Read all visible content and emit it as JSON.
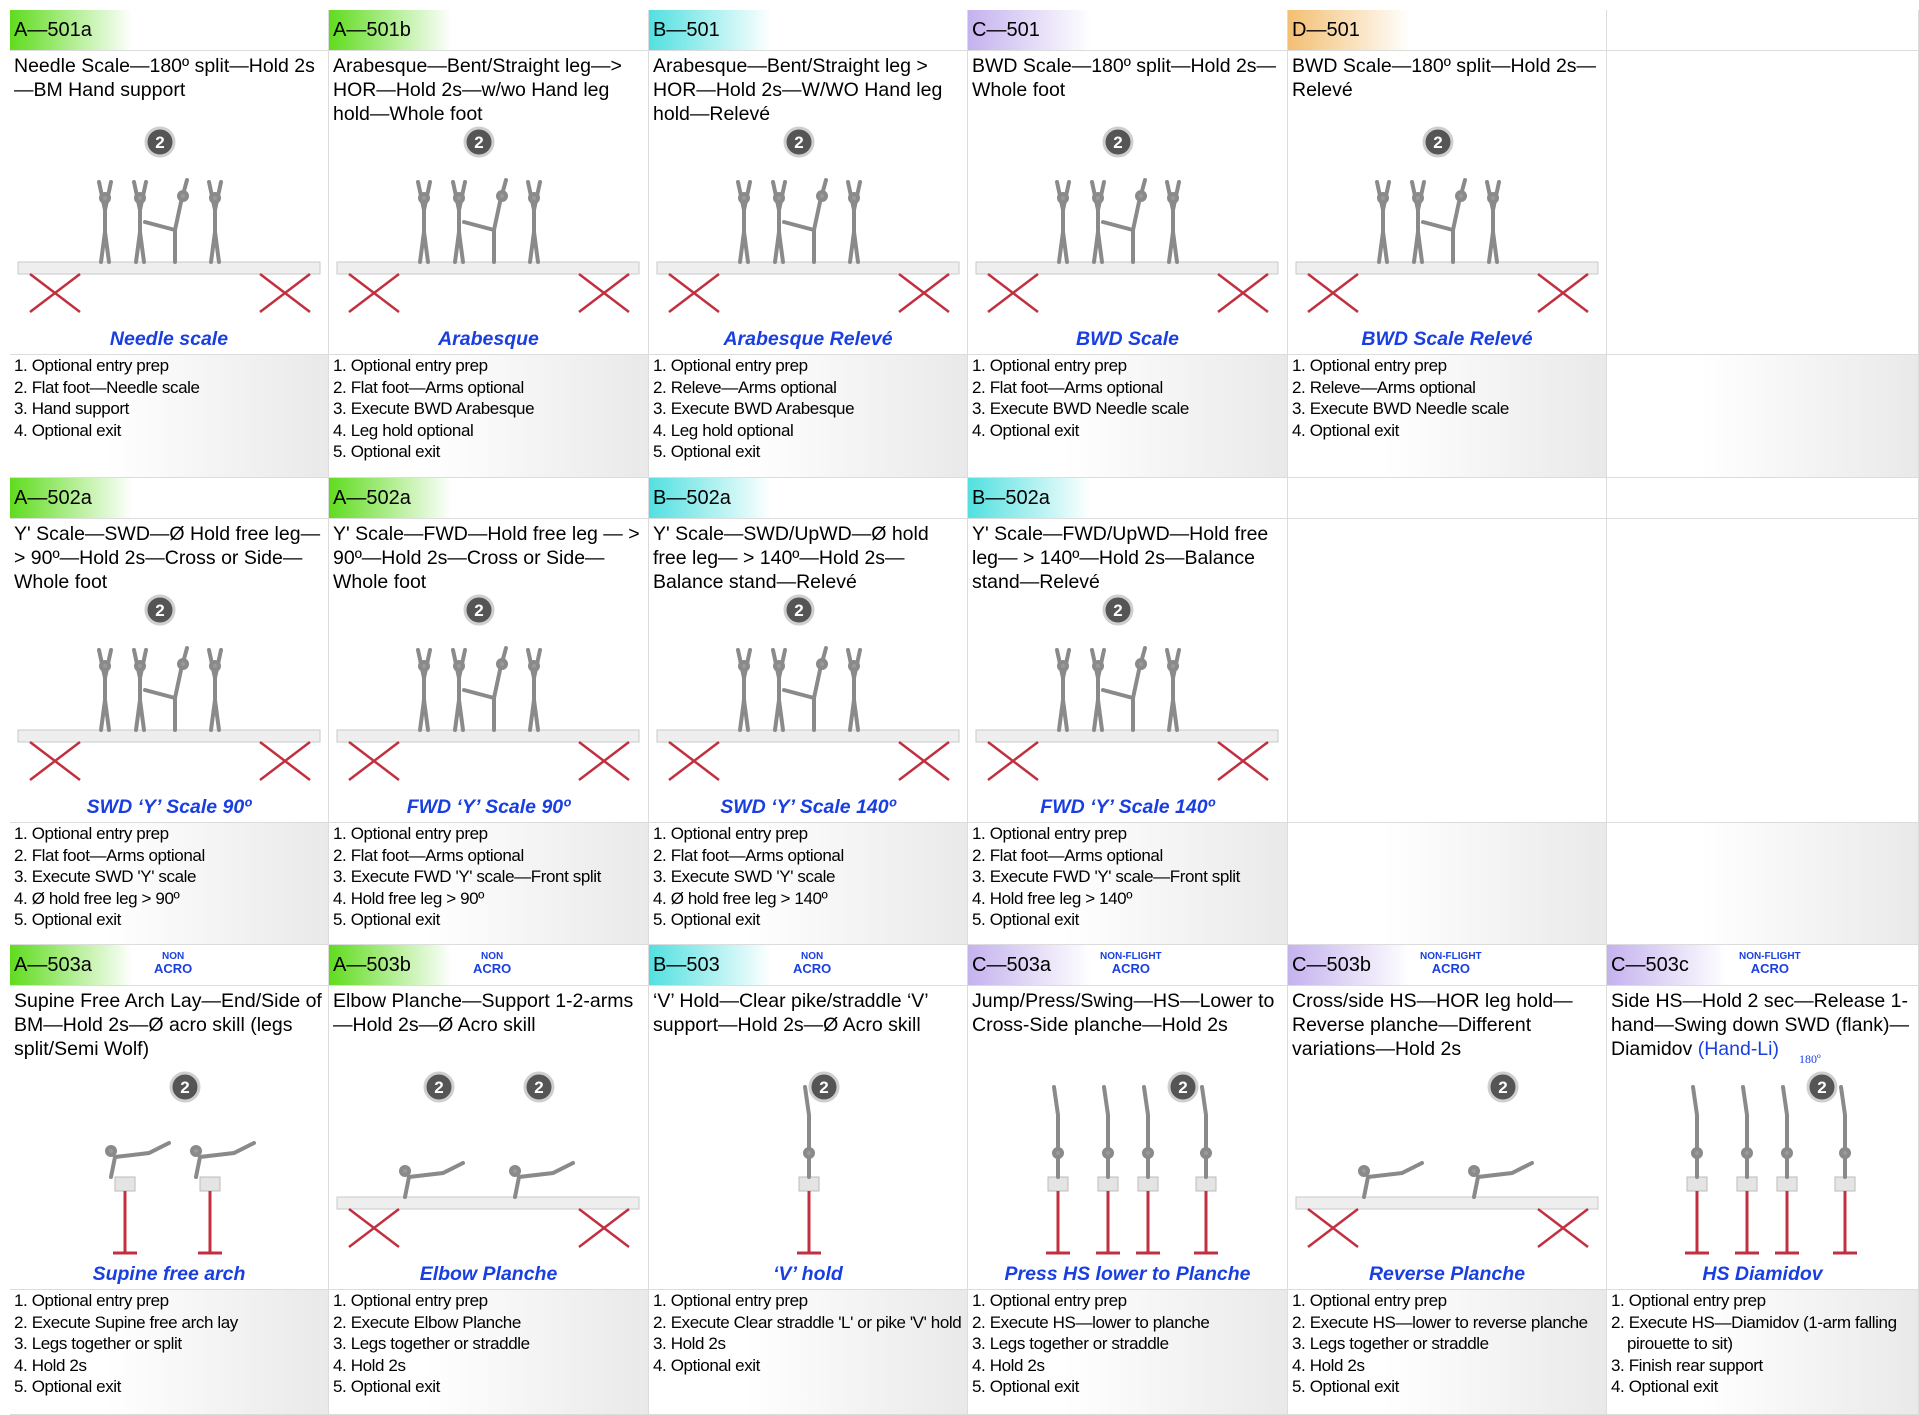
{
  "rows": [
    [
      {
        "code": "A—501a",
        "color": "#5fdc1e",
        "description": "Needle Scale—180º split—Hold 2s—BM Hand support",
        "badges": [
          "2"
        ],
        "name": "Needle scale",
        "steps": [
          "1. Optional entry prep",
          "2. Flat foot—Needle scale",
          "3. Hand support",
          "4. Optional exit"
        ]
      },
      {
        "code": "A—501b",
        "color": "#5fdc1e",
        "description": "Arabesque—Bent/Straight leg—> HOR—Hold 2s—w/wo Hand leg hold—Whole foot",
        "badges": [
          "2"
        ],
        "name": "Arabesque",
        "steps": [
          "1. Optional entry prep",
          "2. Flat foot—Arms optional",
          "3. Execute BWD Arabesque",
          "4. Leg hold optional",
          "5. Optional exit"
        ]
      },
      {
        "code": "B—501",
        "color": "#52e0e0",
        "description": "Arabesque—Bent/Straight leg > HOR—Hold 2s—W/WO Hand leg hold—Relevé",
        "badges": [
          "2"
        ],
        "name": "Arabesque Relevé",
        "steps": [
          "1. Optional entry prep",
          "2. Releve—Arms optional",
          "3. Execute BWD Arabesque",
          "4. Leg hold optional",
          "5. Optional exit"
        ]
      },
      {
        "code": "C—501",
        "color": "#c4b2ee",
        "description": "BWD Scale—180º split—Hold 2s—Whole foot",
        "badges": [
          "2"
        ],
        "name": "BWD Scale",
        "steps": [
          "1. Optional entry prep",
          "2. Flat foot—Arms optional",
          "3. Execute BWD Needle scale",
          "4. Optional exit"
        ]
      },
      {
        "code": "D—501",
        "color": "#f3bf72",
        "description": "BWD Scale—180º split—Hold 2s—Relevé",
        "badges": [
          "2"
        ],
        "name": "BWD Scale Relevé",
        "steps": [
          "1. Optional entry prep",
          "2. Releve—Arms optional",
          "3. Execute BWD Needle scale",
          "4. Optional exit"
        ]
      }
    ],
    [
      {
        "code": "A—502a",
        "color": "#5fdc1e",
        "description": "Y' Scale—SWD—Ø Hold free leg— > 90º—Hold 2s—Cross or Side—Whole foot",
        "badges": [
          "2"
        ],
        "name": "SWD ‘Y’ Scale 90º",
        "steps": [
          "1. Optional entry prep",
          "2. Flat foot—Arms optional",
          "3. Execute SWD 'Y' scale",
          "4. Ø hold free leg > 90º",
          "5. Optional exit"
        ]
      },
      {
        "code": "A—502a",
        "color": "#5fdc1e",
        "description": "Y' Scale—FWD—Hold free leg — > 90º—Hold 2s—Cross or Side—Whole foot",
        "badges": [
          "2"
        ],
        "name": "FWD ‘Y’ Scale 90º",
        "steps": [
          "1. Optional entry prep",
          "2. Flat foot—Arms optional",
          "3. Execute FWD 'Y' scale—Front split",
          "4. Hold free leg > 90º",
          "5. Optional exit"
        ]
      },
      {
        "code": "B—502a",
        "color": "#52e0e0",
        "description": "Y' Scale—SWD/UpWD—Ø hold free leg— > 140º—Hold 2s—Balance stand—Relevé",
        "badges": [
          "2"
        ],
        "name": "SWD ‘Y’ Scale 140º",
        "steps": [
          "1. Optional entry prep",
          "2. Flat foot—Arms optional",
          "3. Execute SWD 'Y' scale",
          "4. Ø hold free leg > 140º",
          "5. Optional exit"
        ]
      },
      {
        "code": "B—502a",
        "color": "#52e0e0",
        "description": "Y' Scale—FWD/UpWD—Hold free leg— > 140º—Hold 2s—Balance stand—Relevé",
        "badges": [
          "2"
        ],
        "name": "FWD ‘Y’ Scale 140º",
        "steps": [
          "1. Optional entry prep",
          "2. Flat foot—Arms optional",
          "3. Execute FWD 'Y' scale—Front split",
          "4. Hold free leg > 140º",
          "5. Optional exit"
        ]
      }
    ],
    [
      {
        "code": "A—503a",
        "color": "#5fdc1e",
        "tag": [
          "NON",
          "ACRO"
        ],
        "description": "Supine Free Arch Lay—End/Side of BM—Hold 2s—Ø acro skill (legs split/Semi Wolf)",
        "badges": [
          "2"
        ],
        "name": "Supine free arch",
        "steps": [
          "1. Optional entry prep",
          "2. Execute Supine free arch lay",
          "3. Legs together or split",
          "4. Hold 2s",
          "5. Optional exit"
        ]
      },
      {
        "code": "A—503b",
        "color": "#5fdc1e",
        "tag": [
          "NON",
          "ACRO"
        ],
        "description": "Elbow Planche—Support 1-2-arms—Hold 2s—Ø Acro skill",
        "badges": [
          "2",
          "2"
        ],
        "name": "Elbow Planche",
        "steps": [
          "1. Optional entry prep",
          "2. Execute Elbow Planche",
          "3. Legs together or straddle",
          "4. Hold 2s",
          "5. Optional exit"
        ]
      },
      {
        "code": "B—503",
        "color": "#52e0e0",
        "tag": [
          "NON",
          "ACRO"
        ],
        "description": "‘V’ Hold—Clear pike/straddle ‘V’ support—Hold 2s—Ø Acro skill",
        "badges": [
          "2"
        ],
        "name": "‘V’ hold",
        "steps": [
          "1. Optional entry prep",
          "2. Execute Clear straddle 'L' or pike 'V' hold",
          "3. Hold 2s",
          "4. Optional exit"
        ]
      },
      {
        "code": "C—503a",
        "color": "#c4b2ee",
        "tag": [
          "NON-FLIGHT",
          "ACRO"
        ],
        "description": "Jump/Press/Swing—HS—Lower to Cross-Side planche—Hold 2s",
        "badges": [
          "2"
        ],
        "name": "Press HS lower to Planche",
        "steps": [
          "1. Optional entry prep",
          "2. Execute HS—lower to planche",
          "3. Legs together or straddle",
          "4. Hold 2s",
          "5. Optional exit"
        ]
      },
      {
        "code": "C—503b",
        "color": "#c4b2ee",
        "tag": [
          "NON-FLIGHT",
          "ACRO"
        ],
        "description": "Cross/side HS—HOR leg hold—Reverse planche—Different variations—Hold 2s",
        "badges": [
          "2"
        ],
        "name": "Reverse Planche",
        "steps": [
          "1. Optional entry prep",
          "2. Execute HS—lower to reverse planche",
          "3. Legs together or straddle",
          "4. Hold 2s",
          "5. Optional exit"
        ]
      },
      {
        "code": "C—503c",
        "color": "#c4b2ee",
        "tag": [
          "NON-FLIGHT",
          "ACRO"
        ],
        "description": "Side HS—Hold 2 sec—Release 1-hand—Swing down SWD (flank)—Diamidov",
        "description_link": "(Hand-Li)",
        "description_note": "180º",
        "badges": [
          "2"
        ],
        "name": "HS Diamidov",
        "steps": [
          "1. Optional entry prep",
          "2. Execute HS—Diamidov (1-arm falling pirouette to sit)",
          "3. Finish rear support",
          "4. Optional exit"
        ]
      }
    ]
  ]
}
